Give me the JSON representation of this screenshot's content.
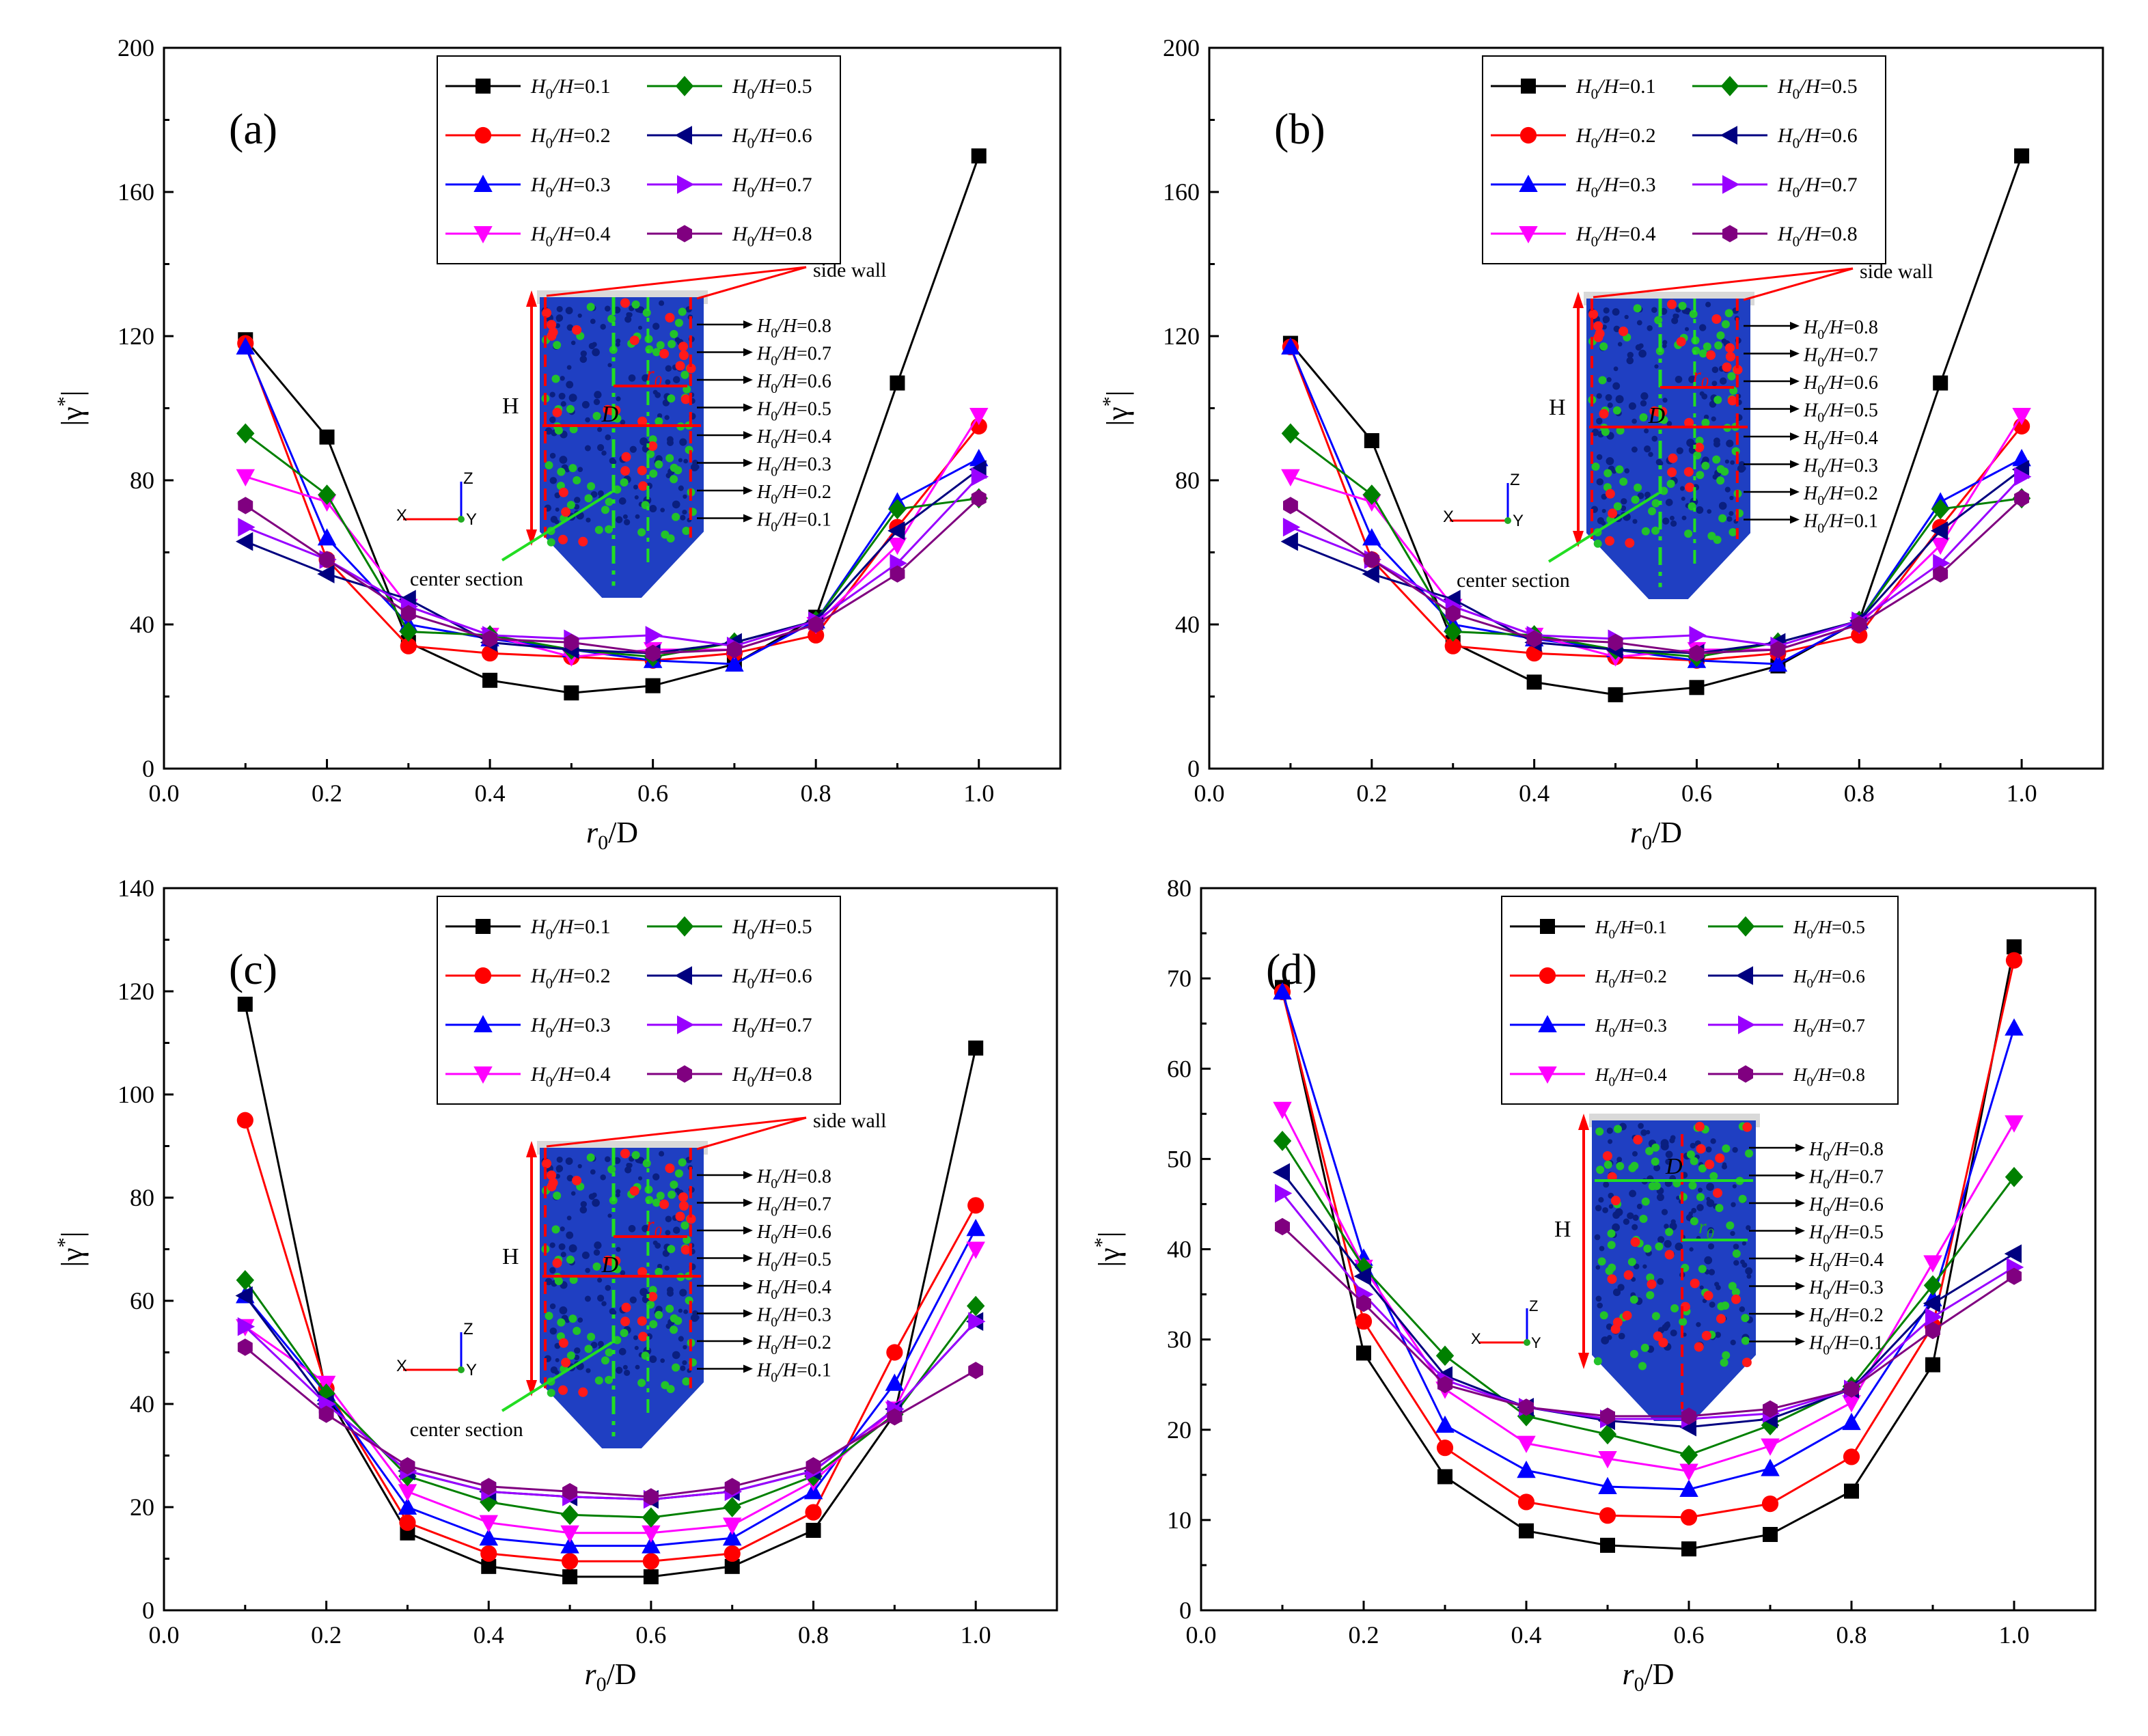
{
  "legend_labels": [
    "H0/H=0.1",
    "H0/H=0.2",
    "H0/H=0.3",
    "H0/H=0.4",
    "H0/H=0.5",
    "H0/H=0.6",
    "H0/H=0.7",
    "H0/H=0.8"
  ],
  "colors": [
    "#000000",
    "#ff0000",
    "#0000ff",
    "#ff00ff",
    "#008000",
    "#000080",
    "#9900ff",
    "#800080"
  ],
  "markers": [
    "square",
    "circle",
    "triangle-up",
    "triangle-down",
    "diamond",
    "triangle-left",
    "triangle-right",
    "hexagon"
  ],
  "inset": {
    "side_wall": "side wall",
    "center_section": "center section",
    "H": "H",
    "D": "D",
    "r0": "r0",
    "axis_z": "Z",
    "axis_x": "X",
    "axis_y": "Y",
    "levels": [
      "H0/H=0.8",
      "H0/H=0.7",
      "H0/H=0.6",
      "H0/H=0.5",
      "H0/H=0.4",
      "H0/H=0.3",
      "H0/H=0.2",
      "H0/H=0.1"
    ]
  },
  "chart_data": [
    {
      "panel": "(a)",
      "type": "line",
      "xlabel": "r0/D",
      "ylabel": "|γ*|",
      "xlim": [
        0,
        1.1
      ],
      "ylim": [
        0,
        200
      ],
      "xticks": [
        0.0,
        0.2,
        0.4,
        0.6,
        0.8,
        1.0
      ],
      "yticks": [
        0,
        40,
        80,
        120,
        160,
        200
      ],
      "x": [
        0.1,
        0.2,
        0.3,
        0.4,
        0.5,
        0.6,
        0.7,
        0.8,
        0.9,
        1.0
      ],
      "series": [
        {
          "name": "H0/H=0.1",
          "values": [
            119,
            92,
            35,
            24.5,
            21,
            23,
            29,
            42,
            107,
            170
          ]
        },
        {
          "name": "H0/H=0.2",
          "values": [
            118,
            58,
            34,
            32,
            31,
            30,
            32,
            37,
            67,
            95
          ]
        },
        {
          "name": "H0/H=0.3",
          "values": [
            117,
            64,
            40,
            36,
            33,
            30,
            29,
            41,
            74,
            86
          ]
        },
        {
          "name": "H0/H=0.4",
          "values": [
            81,
            74,
            45,
            37,
            31,
            33,
            33,
            40,
            62,
            98
          ]
        },
        {
          "name": "H0/H=0.5",
          "values": [
            93,
            76,
            38,
            37,
            33,
            31,
            35,
            41,
            72,
            75
          ]
        },
        {
          "name": "H0/H=0.6",
          "values": [
            63,
            54,
            47,
            35,
            33,
            32,
            35,
            41,
            66,
            83
          ]
        },
        {
          "name": "H0/H=0.7",
          "values": [
            67,
            58,
            45,
            37,
            36,
            37,
            34,
            41,
            57,
            81
          ]
        },
        {
          "name": "H0/H=0.8",
          "values": [
            73,
            58,
            43,
            36,
            35,
            32,
            33,
            40,
            54,
            75
          ]
        }
      ],
      "inset": true,
      "inset_variant": "a"
    },
    {
      "panel": "(b)",
      "type": "line",
      "xlabel": "r0/D",
      "ylabel": "|γ*|",
      "xlim": [
        0,
        1.1
      ],
      "ylim": [
        0,
        200
      ],
      "xticks": [
        0.0,
        0.2,
        0.4,
        0.6,
        0.8,
        1.0
      ],
      "yticks": [
        0,
        40,
        80,
        120,
        160,
        200
      ],
      "x": [
        0.1,
        0.2,
        0.3,
        0.4,
        0.5,
        0.6,
        0.7,
        0.8,
        0.9,
        1.0
      ],
      "series": [
        {
          "name": "H0/H=0.1",
          "values": [
            118,
            91,
            35,
            24,
            20.5,
            22.5,
            28.5,
            41,
            107,
            170
          ]
        },
        {
          "name": "H0/H=0.2",
          "values": [
            117,
            58,
            34,
            32,
            31,
            30,
            32,
            37,
            67,
            95
          ]
        },
        {
          "name": "H0/H=0.3",
          "values": [
            117,
            64,
            40,
            36,
            33,
            30,
            29,
            41,
            74,
            86
          ]
        },
        {
          "name": "H0/H=0.4",
          "values": [
            81,
            74,
            45,
            37,
            31,
            33,
            33,
            40,
            62,
            98
          ]
        },
        {
          "name": "H0/H=0.5",
          "values": [
            93,
            76,
            38,
            37,
            33,
            31,
            35,
            41,
            72,
            75
          ]
        },
        {
          "name": "H0/H=0.6",
          "values": [
            63,
            54,
            47,
            35,
            33,
            32,
            35,
            41,
            66,
            83
          ]
        },
        {
          "name": "H0/H=0.7",
          "values": [
            67,
            58,
            45,
            37,
            36,
            37,
            34,
            41,
            57,
            81
          ]
        },
        {
          "name": "H0/H=0.8",
          "values": [
            73,
            58,
            43,
            36,
            35,
            32,
            33,
            40,
            54,
            75
          ]
        }
      ],
      "inset": true,
      "inset_variant": "a"
    },
    {
      "panel": "(c)",
      "type": "line",
      "xlabel": "r0/D",
      "ylabel": "|γ*|",
      "xlim": [
        0,
        1.1
      ],
      "ylim": [
        0,
        140
      ],
      "xticks": [
        0.0,
        0.2,
        0.4,
        0.6,
        0.8,
        1.0
      ],
      "yticks": [
        0,
        20,
        40,
        60,
        80,
        100,
        120,
        140
      ],
      "x": [
        0.1,
        0.2,
        0.3,
        0.4,
        0.5,
        0.6,
        0.7,
        0.8,
        0.9,
        1.0
      ],
      "series": [
        {
          "name": "H0/H=0.1",
          "values": [
            117.5,
            42,
            15,
            8.5,
            6.5,
            6.5,
            8.5,
            15.5,
            38,
            109
          ]
        },
        {
          "name": "H0/H=0.2",
          "values": [
            95,
            43,
            17,
            11,
            9.5,
            9.5,
            11,
            19,
            50,
            78.5
          ]
        },
        {
          "name": "H0/H=0.3",
          "values": [
            61,
            42,
            20,
            14,
            12.5,
            12.5,
            14,
            23,
            44,
            74
          ]
        },
        {
          "name": "H0/H=0.4",
          "values": [
            55,
            44,
            23,
            17,
            15,
            15,
            16.5,
            25,
            39,
            70
          ]
        },
        {
          "name": "H0/H=0.5",
          "values": [
            64,
            42,
            26,
            21,
            18.5,
            18,
            20,
            26,
            38,
            59
          ]
        },
        {
          "name": "H0/H=0.6",
          "values": [
            61,
            40,
            27,
            23,
            22,
            21.5,
            23,
            27,
            39,
            56
          ]
        },
        {
          "name": "H0/H=0.7",
          "values": [
            55,
            40,
            27,
            23,
            22,
            21.5,
            23,
            27,
            39,
            56
          ]
        },
        {
          "name": "H0/H=0.8",
          "values": [
            51,
            38,
            28,
            24,
            23,
            22,
            24,
            28,
            37.5,
            46.5
          ]
        }
      ],
      "inset": true,
      "inset_variant": "a"
    },
    {
      "panel": "(d)",
      "type": "line",
      "xlabel": "r0/D",
      "ylabel": "|γ*|",
      "xlim": [
        0,
        1.1
      ],
      "ylim": [
        0,
        80
      ],
      "xticks": [
        0.0,
        0.2,
        0.4,
        0.6,
        0.8,
        1.0
      ],
      "yticks": [
        0,
        10,
        20,
        30,
        40,
        50,
        60,
        70,
        80
      ],
      "x": [
        0.1,
        0.2,
        0.3,
        0.4,
        0.5,
        0.6,
        0.7,
        0.8,
        0.9,
        1.0
      ],
      "series": [
        {
          "name": "H0/H=0.1",
          "values": [
            69,
            28.5,
            14.8,
            8.8,
            7.2,
            6.8,
            8.4,
            13.2,
            27.2,
            73.5
          ]
        },
        {
          "name": "H0/H=0.2",
          "values": [
            68.5,
            32,
            18,
            12,
            10.5,
            10.3,
            11.8,
            17,
            31.5,
            72
          ]
        },
        {
          "name": "H0/H=0.3",
          "values": [
            68.5,
            39,
            20.5,
            15.5,
            13.7,
            13.4,
            15.7,
            20.8,
            34.5,
            64.5
          ]
        },
        {
          "name": "H0/H=0.4",
          "values": [
            55.5,
            38,
            24.5,
            18.5,
            16.8,
            15.4,
            18.2,
            23,
            38.5,
            54
          ]
        },
        {
          "name": "H0/H=0.5",
          "values": [
            52,
            38,
            28.2,
            21.5,
            19.5,
            17.2,
            20.5,
            24.8,
            36,
            48
          ]
        },
        {
          "name": "H0/H=0.6",
          "values": [
            48.5,
            37,
            26,
            22.5,
            21,
            20.3,
            21.2,
            24.5,
            34,
            39.5
          ]
        },
        {
          "name": "H0/H=0.7",
          "values": [
            46.2,
            35,
            25.5,
            22.5,
            21.2,
            21.2,
            21.8,
            24.5,
            32.5,
            38
          ]
        },
        {
          "name": "H0/H=0.8",
          "values": [
            42.5,
            34,
            25,
            22.5,
            21.5,
            21.5,
            22.3,
            24.5,
            31,
            37
          ]
        }
      ],
      "inset": true,
      "inset_variant": "d"
    }
  ]
}
